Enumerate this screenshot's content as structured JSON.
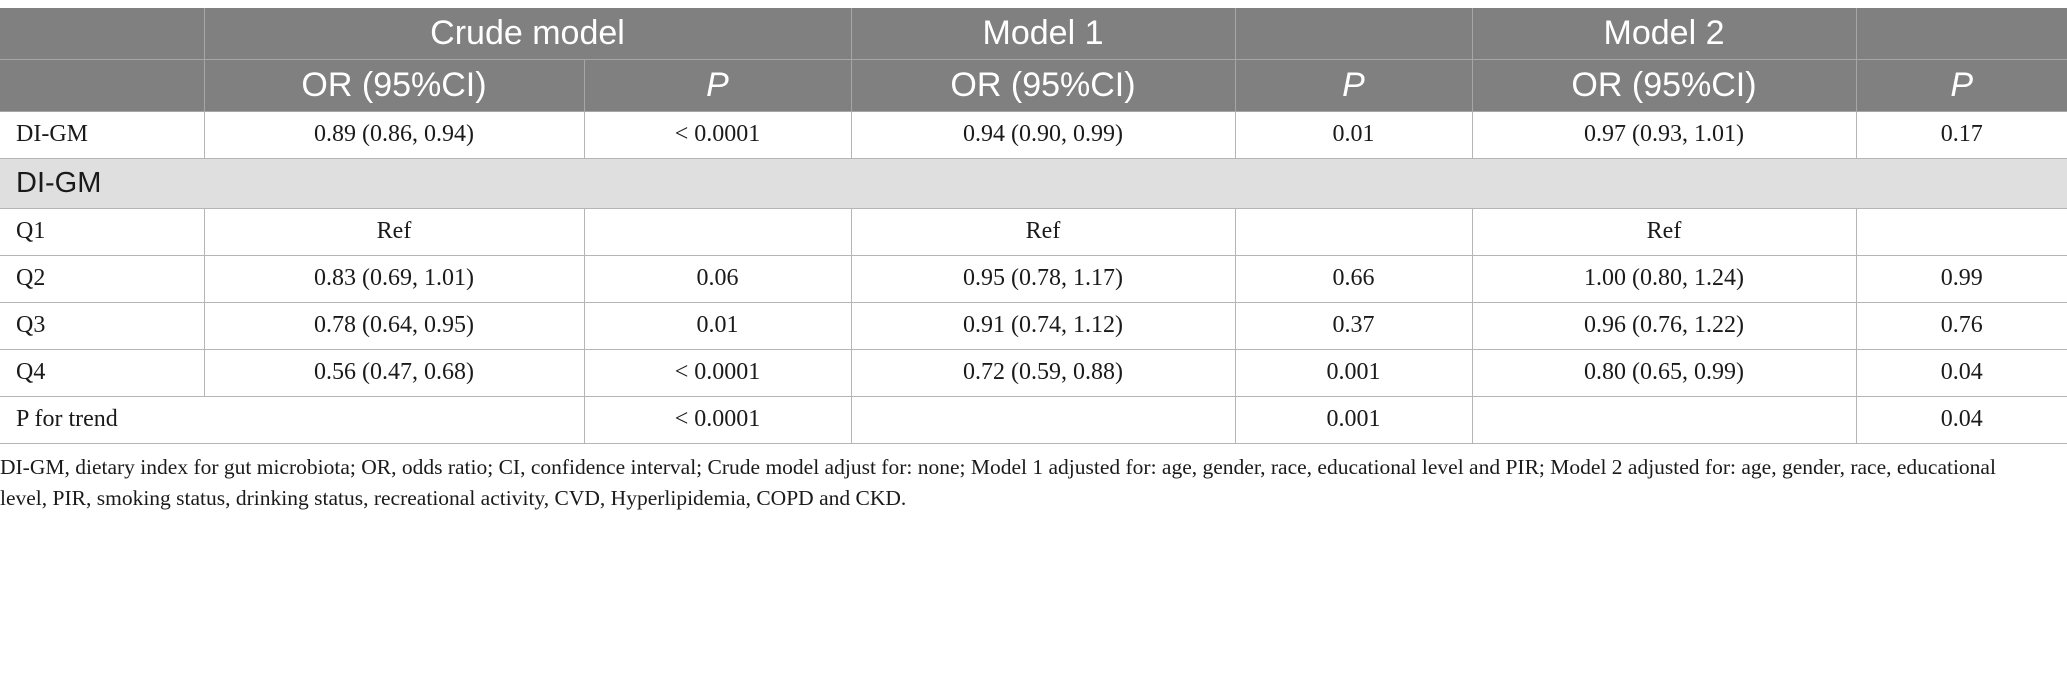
{
  "header": {
    "groups": [
      "",
      "Crude model",
      "Model 1",
      "",
      "Model 2",
      ""
    ],
    "columns": [
      "",
      "OR (95%CI)",
      "P",
      "OR (95%CI)",
      "P",
      "OR (95%CI)",
      "P"
    ]
  },
  "rows": {
    "digm": [
      "DI-GM",
      "0.89 (0.86, 0.94)",
      "< 0.0001",
      "0.94 (0.90, 0.99)",
      "0.01",
      "0.97 (0.93, 1.01)",
      "0.17"
    ],
    "section": "DI-GM",
    "q1": [
      "Q1",
      "Ref",
      "",
      "Ref",
      "",
      "Ref",
      ""
    ],
    "q2": [
      "Q2",
      "0.83 (0.69, 1.01)",
      "0.06",
      "0.95 (0.78, 1.17)",
      "0.66",
      "1.00 (0.80, 1.24)",
      "0.99"
    ],
    "q3": [
      "Q3",
      "0.78 (0.64, 0.95)",
      "0.01",
      "0.91 (0.74, 1.12)",
      "0.37",
      "0.96 (0.76, 1.22)",
      "0.76"
    ],
    "q4": [
      "Q4",
      "0.56 (0.47, 0.68)",
      "< 0.0001",
      "0.72 (0.59, 0.88)",
      "0.001",
      "0.80 (0.65, 0.99)",
      "0.04"
    ],
    "trend": [
      "P for trend",
      "< 0.0001",
      "",
      "0.001",
      "",
      "0.04"
    ]
  },
  "footnote": "DI-GM, dietary index for gut microbiota; OR, odds ratio; CI, confidence interval; Crude model adjust for: none; Model 1 adjusted for: age, gender, race, educational level and PIR; Model 2 adjusted for: age, gender, race, educational level, PIR, smoking status, drinking status, recreational activity, CVD, Hyperlipidemia, COPD and CKD."
}
